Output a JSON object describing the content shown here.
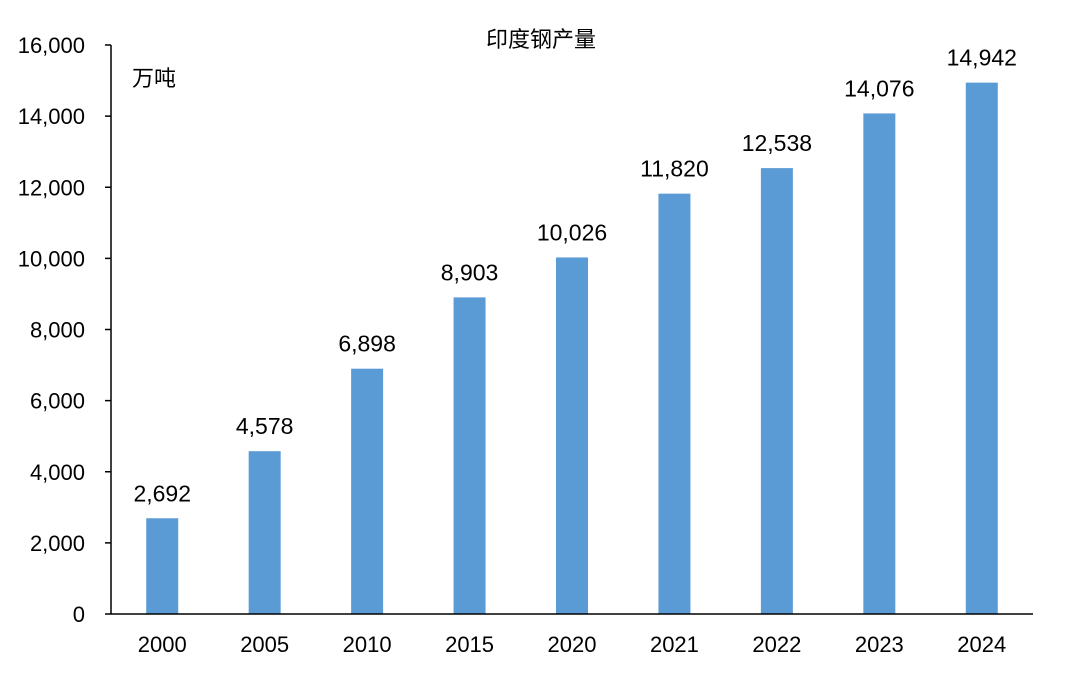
{
  "chart_data": {
    "type": "bar",
    "title": "印度钢产量",
    "unit": "万吨",
    "categories": [
      "2000",
      "2005",
      "2010",
      "2015",
      "2020",
      "2021",
      "2022",
      "2023",
      "2024"
    ],
    "values": [
      2692,
      4578,
      6898,
      8903,
      10026,
      11820,
      12538,
      14076,
      14942
    ],
    "data_labels": [
      "2,692",
      "4,578",
      "6,898",
      "8,903",
      "10,026",
      "11,820",
      "12,538",
      "14,076",
      "14,942"
    ],
    "y_ticks": [
      "0",
      "2,000",
      "4,000",
      "6,000",
      "8,000",
      "10,000",
      "12,000",
      "14,000",
      "16,000"
    ],
    "y_tick_values": [
      0,
      2000,
      4000,
      6000,
      8000,
      10000,
      12000,
      14000,
      16000
    ],
    "ylim": [
      0,
      16000
    ],
    "xlabel": "",
    "ylabel": "",
    "grid": false,
    "legend": "none",
    "bar_color": "#5b9bd5"
  }
}
